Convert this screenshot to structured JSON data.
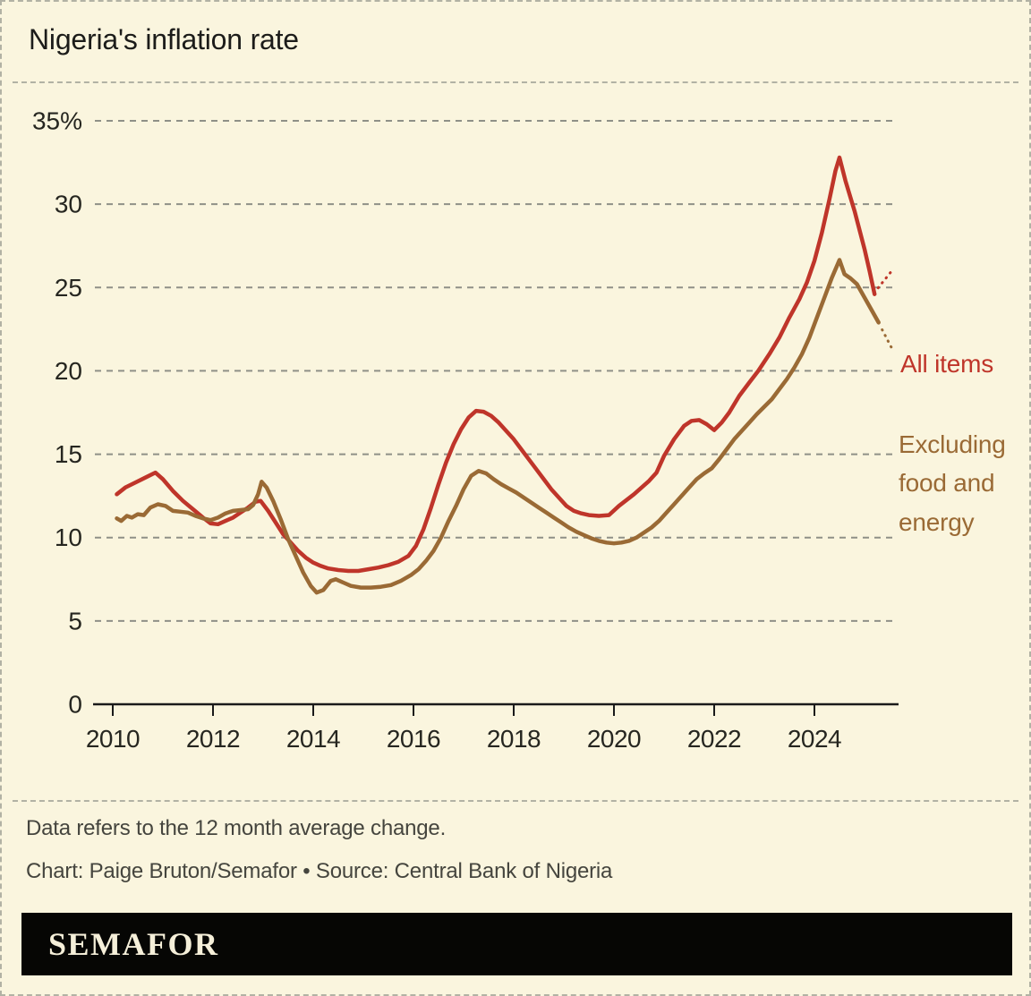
{
  "header": {
    "title": "Nigeria's inflation rate"
  },
  "footer": {
    "note": "Data refers to the 12 month average change.",
    "credit": "Chart: Paige Bruton/Semafor • Source: Central Bank of Nigeria",
    "logo": "SEMAFOR"
  },
  "colors": {
    "background": "#faf5de",
    "all_items_red": "#bf352a",
    "excluding_brown": "#9a6a35",
    "gridline": "#8f9087",
    "axis": "#1a1a1a",
    "dashed_border": "#b2b2a4",
    "title_text": "#1c1c1a",
    "footer_text": "#45453e",
    "logo_bg": "#060604",
    "logo_text": "#f5efd9"
  },
  "chart_data": {
    "type": "line",
    "title": "Nigeria's inflation rate",
    "unit": "percent",
    "ylim": [
      0,
      35
    ],
    "xlim": [
      2009.7,
      2025.6
    ],
    "grid": "horizontal-dashed",
    "legend_position": "right-of-line-ends",
    "y_ticks": [
      {
        "value": 35,
        "label": "35%"
      },
      {
        "value": 30,
        "label": "30"
      },
      {
        "value": 25,
        "label": "25"
      },
      {
        "value": 20,
        "label": "20"
      },
      {
        "value": 15,
        "label": "15"
      },
      {
        "value": 10,
        "label": "10"
      },
      {
        "value": 5,
        "label": "5"
      },
      {
        "value": 0,
        "label": "0"
      }
    ],
    "x_ticks": [
      {
        "value": 2010,
        "label": "2010"
      },
      {
        "value": 2012,
        "label": "2012"
      },
      {
        "value": 2014,
        "label": "2014"
      },
      {
        "value": 2016,
        "label": "2016"
      },
      {
        "value": 2018,
        "label": "2018"
      },
      {
        "value": 2020,
        "label": "2020"
      },
      {
        "value": 2022,
        "label": "2022"
      },
      {
        "value": 2024,
        "label": "2024"
      }
    ],
    "series": [
      {
        "name": "All items",
        "color": "#bf352a",
        "points": [
          [
            2010.08,
            12.6
          ],
          [
            2010.25,
            13.0
          ],
          [
            2010.45,
            13.3
          ],
          [
            2010.65,
            13.6
          ],
          [
            2010.85,
            13.9
          ],
          [
            2011.0,
            13.5
          ],
          [
            2011.2,
            12.8
          ],
          [
            2011.4,
            12.2
          ],
          [
            2011.6,
            11.7
          ],
          [
            2011.8,
            11.2
          ],
          [
            2011.95,
            10.85
          ],
          [
            2012.1,
            10.8
          ],
          [
            2012.25,
            11.0
          ],
          [
            2012.4,
            11.2
          ],
          [
            2012.55,
            11.5
          ],
          [
            2012.7,
            11.8
          ],
          [
            2012.85,
            12.15
          ],
          [
            2012.95,
            12.2
          ],
          [
            2013.1,
            11.6
          ],
          [
            2013.25,
            10.9
          ],
          [
            2013.4,
            10.2
          ],
          [
            2013.55,
            9.7
          ],
          [
            2013.7,
            9.2
          ],
          [
            2013.85,
            8.8
          ],
          [
            2014.0,
            8.5
          ],
          [
            2014.15,
            8.3
          ],
          [
            2014.3,
            8.15
          ],
          [
            2014.5,
            8.05
          ],
          [
            2014.7,
            8.0
          ],
          [
            2014.9,
            8.0
          ],
          [
            2015.1,
            8.1
          ],
          [
            2015.3,
            8.2
          ],
          [
            2015.5,
            8.35
          ],
          [
            2015.7,
            8.55
          ],
          [
            2015.9,
            8.9
          ],
          [
            2016.05,
            9.5
          ],
          [
            2016.2,
            10.5
          ],
          [
            2016.35,
            11.8
          ],
          [
            2016.5,
            13.2
          ],
          [
            2016.65,
            14.5
          ],
          [
            2016.8,
            15.6
          ],
          [
            2016.95,
            16.5
          ],
          [
            2017.1,
            17.2
          ],
          [
            2017.25,
            17.6
          ],
          [
            2017.4,
            17.55
          ],
          [
            2017.55,
            17.3
          ],
          [
            2017.7,
            16.9
          ],
          [
            2017.85,
            16.4
          ],
          [
            2018.0,
            15.9
          ],
          [
            2018.15,
            15.3
          ],
          [
            2018.3,
            14.7
          ],
          [
            2018.45,
            14.1
          ],
          [
            2018.6,
            13.5
          ],
          [
            2018.75,
            12.9
          ],
          [
            2018.9,
            12.4
          ],
          [
            2019.05,
            11.9
          ],
          [
            2019.2,
            11.6
          ],
          [
            2019.35,
            11.45
          ],
          [
            2019.5,
            11.35
          ],
          [
            2019.7,
            11.3
          ],
          [
            2019.9,
            11.35
          ],
          [
            2020.1,
            11.9
          ],
          [
            2020.4,
            12.6
          ],
          [
            2020.7,
            13.4
          ],
          [
            2020.85,
            13.9
          ],
          [
            2021.0,
            14.9
          ],
          [
            2021.2,
            15.9
          ],
          [
            2021.4,
            16.7
          ],
          [
            2021.55,
            17.0
          ],
          [
            2021.7,
            17.05
          ],
          [
            2021.85,
            16.8
          ],
          [
            2022.0,
            16.45
          ],
          [
            2022.15,
            16.9
          ],
          [
            2022.3,
            17.5
          ],
          [
            2022.5,
            18.5
          ],
          [
            2022.7,
            19.3
          ],
          [
            2022.88,
            20.0
          ],
          [
            2023.1,
            21.0
          ],
          [
            2023.3,
            22.0
          ],
          [
            2023.5,
            23.2
          ],
          [
            2023.7,
            24.3
          ],
          [
            2023.85,
            25.3
          ],
          [
            2024.0,
            26.6
          ],
          [
            2024.15,
            28.3
          ],
          [
            2024.3,
            30.3
          ],
          [
            2024.42,
            32.0
          ],
          [
            2024.5,
            32.8
          ],
          [
            2024.62,
            31.4
          ],
          [
            2024.8,
            29.6
          ],
          [
            2025.0,
            27.3
          ],
          [
            2025.1,
            26.0
          ],
          [
            2025.2,
            24.6
          ]
        ]
      },
      {
        "name": "Excluding food and energy",
        "color": "#9a6a35",
        "points": [
          [
            2010.08,
            11.15
          ],
          [
            2010.17,
            11.0
          ],
          [
            2010.28,
            11.3
          ],
          [
            2010.38,
            11.2
          ],
          [
            2010.5,
            11.4
          ],
          [
            2010.62,
            11.35
          ],
          [
            2010.75,
            11.8
          ],
          [
            2010.9,
            12.0
          ],
          [
            2011.05,
            11.9
          ],
          [
            2011.2,
            11.6
          ],
          [
            2011.35,
            11.55
          ],
          [
            2011.5,
            11.5
          ],
          [
            2011.65,
            11.3
          ],
          [
            2011.8,
            11.15
          ],
          [
            2011.95,
            11.05
          ],
          [
            2012.1,
            11.2
          ],
          [
            2012.25,
            11.45
          ],
          [
            2012.4,
            11.6
          ],
          [
            2012.55,
            11.65
          ],
          [
            2012.7,
            11.7
          ],
          [
            2012.8,
            11.95
          ],
          [
            2012.9,
            12.6
          ],
          [
            2012.97,
            13.35
          ],
          [
            2013.07,
            13.0
          ],
          [
            2013.2,
            12.2
          ],
          [
            2013.35,
            11.1
          ],
          [
            2013.5,
            9.9
          ],
          [
            2013.65,
            8.9
          ],
          [
            2013.8,
            7.9
          ],
          [
            2013.95,
            7.1
          ],
          [
            2014.07,
            6.7
          ],
          [
            2014.2,
            6.85
          ],
          [
            2014.35,
            7.4
          ],
          [
            2014.45,
            7.5
          ],
          [
            2014.6,
            7.3
          ],
          [
            2014.75,
            7.1
          ],
          [
            2014.95,
            7.0
          ],
          [
            2015.15,
            7.0
          ],
          [
            2015.35,
            7.05
          ],
          [
            2015.55,
            7.15
          ],
          [
            2015.75,
            7.4
          ],
          [
            2015.95,
            7.75
          ],
          [
            2016.1,
            8.1
          ],
          [
            2016.25,
            8.6
          ],
          [
            2016.4,
            9.2
          ],
          [
            2016.55,
            10.0
          ],
          [
            2016.7,
            11.0
          ],
          [
            2016.85,
            11.9
          ],
          [
            2017.0,
            12.9
          ],
          [
            2017.15,
            13.7
          ],
          [
            2017.3,
            14.0
          ],
          [
            2017.45,
            13.85
          ],
          [
            2017.6,
            13.5
          ],
          [
            2017.75,
            13.2
          ],
          [
            2017.9,
            12.95
          ],
          [
            2018.05,
            12.7
          ],
          [
            2018.2,
            12.4
          ],
          [
            2018.35,
            12.1
          ],
          [
            2018.5,
            11.8
          ],
          [
            2018.65,
            11.5
          ],
          [
            2018.8,
            11.2
          ],
          [
            2018.95,
            10.9
          ],
          [
            2019.1,
            10.6
          ],
          [
            2019.25,
            10.35
          ],
          [
            2019.4,
            10.15
          ],
          [
            2019.55,
            9.95
          ],
          [
            2019.7,
            9.8
          ],
          [
            2019.85,
            9.7
          ],
          [
            2020.0,
            9.65
          ],
          [
            2020.15,
            9.7
          ],
          [
            2020.3,
            9.8
          ],
          [
            2020.45,
            10.0
          ],
          [
            2020.6,
            10.3
          ],
          [
            2020.75,
            10.6
          ],
          [
            2020.9,
            11.0
          ],
          [
            2021.05,
            11.5
          ],
          [
            2021.2,
            12.0
          ],
          [
            2021.35,
            12.5
          ],
          [
            2021.5,
            13.0
          ],
          [
            2021.65,
            13.5
          ],
          [
            2021.8,
            13.85
          ],
          [
            2021.95,
            14.15
          ],
          [
            2022.1,
            14.7
          ],
          [
            2022.25,
            15.3
          ],
          [
            2022.4,
            15.9
          ],
          [
            2022.55,
            16.4
          ],
          [
            2022.7,
            16.9
          ],
          [
            2022.85,
            17.4
          ],
          [
            2023.0,
            17.85
          ],
          [
            2023.15,
            18.3
          ],
          [
            2023.3,
            18.9
          ],
          [
            2023.45,
            19.5
          ],
          [
            2023.6,
            20.2
          ],
          [
            2023.75,
            21.0
          ],
          [
            2023.9,
            22.0
          ],
          [
            2024.05,
            23.2
          ],
          [
            2024.2,
            24.4
          ],
          [
            2024.35,
            25.6
          ],
          [
            2024.5,
            26.65
          ],
          [
            2024.6,
            25.8
          ],
          [
            2024.72,
            25.55
          ],
          [
            2024.85,
            25.2
          ],
          [
            2025.0,
            24.4
          ],
          [
            2025.15,
            23.6
          ],
          [
            2025.28,
            22.9
          ]
        ]
      }
    ]
  }
}
